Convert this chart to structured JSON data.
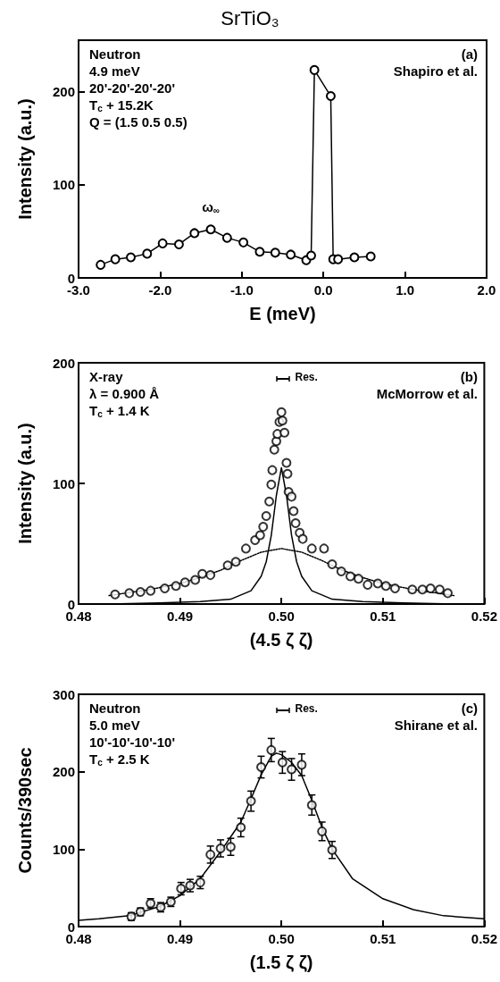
{
  "chart_data": [
    {
      "type": "line",
      "title": "SrTiO₃",
      "xlabel": "E (meV)",
      "ylabel": "Intensity (a.u.)",
      "marker": "circle",
      "xlim": [
        -3,
        2
      ],
      "ylim": [
        0,
        255
      ],
      "xticks": [
        {
          "value": -3,
          "label": "-3.0"
        },
        {
          "value": -2,
          "label": "-2.0"
        },
        {
          "value": -1,
          "label": "-1.0"
        },
        {
          "value": 0,
          "label": "0.0"
        },
        {
          "value": 1,
          "label": "1.0"
        },
        {
          "value": 2,
          "label": "2.0"
        }
      ],
      "yticks": [
        0,
        100,
        200
      ],
      "series": [
        {
          "color": "#000000",
          "x": [
            -2.73,
            -2.55,
            -2.36,
            -2.16,
            -1.97,
            -1.77,
            -1.58,
            -1.38,
            -1.18,
            -0.98,
            -0.78,
            -0.59,
            -0.4,
            -0.21,
            -0.15,
            -0.11,
            0.09,
            0.12,
            0.18,
            0.38,
            0.58
          ],
          "values": [
            14,
            20,
            22,
            26,
            37,
            36,
            48,
            52,
            43,
            38,
            28,
            27,
            25,
            19,
            24,
            223,
            195,
            20,
            20,
            22,
            23
          ]
        }
      ],
      "annotations": [
        "Neutron",
        "4.9 meV",
        "20'-20'-20'-20'",
        "T$_{c}$ + 15.2K",
        "Q = (1.5 0.5 0.5)",
        "(a)",
        "Shapiro et al.",
        {
          "text": "ω$_{∞}$",
          "x": -1.38,
          "y": 52
        }
      ]
    },
    {
      "type": "scatter",
      "xlabel": "(4.5 ζ ζ)",
      "ylabel": "Intensity (a.u.)",
      "marker": "circle",
      "xlim": [
        0.48,
        0.52
      ],
      "ylim": [
        0,
        200
      ],
      "xticks": [
        0.48,
        0.49,
        {
          "value": 0.5,
          "label": "0.50"
        },
        0.51,
        0.52
      ],
      "yticks": [
        0,
        100,
        200
      ],
      "series": [
        {
          "color": "#000000",
          "x": [
            0.4836,
            0.485,
            0.4861,
            0.4871,
            0.4885,
            0.4896,
            0.4905,
            0.4915,
            0.4922,
            0.493,
            0.4947,
            0.4955,
            0.4965,
            0.4974,
            0.4979,
            0.4982,
            0.4985,
            0.4988,
            0.499,
            0.4991,
            0.4993,
            0.4995,
            0.4996,
            0.4998,
            0.5,
            0.5001,
            0.5003,
            0.5005,
            0.5006,
            0.5007,
            0.501,
            0.5012,
            0.5014,
            0.5018,
            0.5021,
            0.503,
            0.5042,
            0.505,
            0.5059,
            0.5068,
            0.5076,
            0.5085,
            0.5095,
            0.5103,
            0.5112,
            0.5129,
            0.5139,
            0.5147,
            0.5156,
            0.5164
          ],
          "values": [
            8,
            9,
            10,
            11,
            13,
            15,
            18,
            20,
            25,
            24,
            32,
            35,
            46,
            53,
            57,
            64,
            73,
            85,
            99,
            111,
            128,
            135,
            141,
            151,
            159,
            152,
            142,
            117,
            108,
            93,
            89,
            77,
            67,
            59,
            54,
            46,
            46,
            33,
            27,
            23,
            21,
            16,
            17,
            15,
            13,
            12,
            12,
            13,
            12,
            9
          ]
        },
        {
          "type": "line",
          "color": "#000000",
          "marker": "none",
          "x": [
            0.483,
            0.488,
            0.492,
            0.495,
            0.497,
            0.498,
            0.4985,
            0.499,
            0.4995,
            0.5,
            0.5005,
            0.501,
            0.5015,
            0.502,
            0.503,
            0.505,
            0.508,
            0.512,
            0.517
          ],
          "values": [
            0,
            1,
            2,
            4,
            11,
            23,
            35,
            57,
            90,
            113,
            90,
            57,
            35,
            23,
            11,
            4,
            2,
            1,
            0
          ]
        },
        {
          "type": "line",
          "color": "#000000",
          "marker": "none",
          "line_style": "dotted",
          "x": [
            0.483,
            0.487,
            0.49,
            0.492,
            0.494,
            0.496,
            0.498,
            0.5,
            0.502,
            0.504,
            0.506,
            0.508,
            0.51,
            0.513,
            0.517
          ],
          "values": [
            7,
            12,
            17,
            22,
            28,
            36,
            43,
            46,
            43,
            36,
            28,
            22,
            17,
            12,
            7
          ]
        }
      ],
      "annotations": [
        "X-ray",
        "λ = 0.900 Å",
        "T$_{c}$ + 1.4 K",
        "Res.",
        "(b)",
        "McMorrow et al."
      ]
    },
    {
      "type": "scatter",
      "xlabel": "(1.5 ζ ζ)",
      "ylabel": "Counts/390sec",
      "marker": "circle",
      "xlim": [
        0.48,
        0.52
      ],
      "ylim": [
        0,
        300
      ],
      "xticks": [
        0.48,
        0.49,
        {
          "value": 0.5,
          "label": "0.50"
        },
        0.51,
        0.52
      ],
      "yticks": [
        0,
        100,
        200,
        300
      ],
      "series": [
        {
          "color": "#000000",
          "x": [
            0.4852,
            0.4861,
            0.4871,
            0.4881,
            0.4891,
            0.4901,
            0.491,
            0.492,
            0.493,
            0.494,
            0.495,
            0.496,
            0.497,
            0.498,
            0.499,
            0.5001,
            0.501,
            0.502,
            0.503,
            0.504,
            0.505
          ],
          "values": [
            13,
            19,
            30,
            25,
            32,
            49,
            53,
            57,
            93,
            101,
            103,
            128,
            162,
            206,
            228,
            212,
            203,
            209,
            157,
            123,
            99
          ],
          "errors": [
            5,
            5,
            6,
            6,
            6,
            8,
            8,
            8,
            11,
            11,
            11,
            12,
            13,
            14,
            15,
            14,
            14,
            14,
            13,
            12,
            11
          ]
        },
        {
          "type": "line",
          "color": "#000000",
          "marker": "none",
          "x": [
            0.48,
            0.482,
            0.485,
            0.488,
            0.49,
            0.492,
            0.494,
            0.496,
            0.497,
            0.498,
            0.499,
            0.4995,
            0.5,
            0.501,
            0.502,
            0.503,
            0.504,
            0.505,
            0.507,
            0.51,
            0.513,
            0.516,
            0.52
          ],
          "values": [
            8,
            10,
            14,
            26,
            40,
            62,
            97,
            135,
            165,
            196,
            220,
            224,
            222,
            212,
            195,
            163,
            128,
            100,
            62,
            36,
            22,
            14,
            10
          ]
        }
      ],
      "annotations": [
        "Neutron",
        "5.0 meV",
        "10'-10'-10'-10'",
        "T$_{c}$ + 2.5 K",
        "Res.",
        "(c)",
        "Shirane et al."
      ]
    }
  ]
}
